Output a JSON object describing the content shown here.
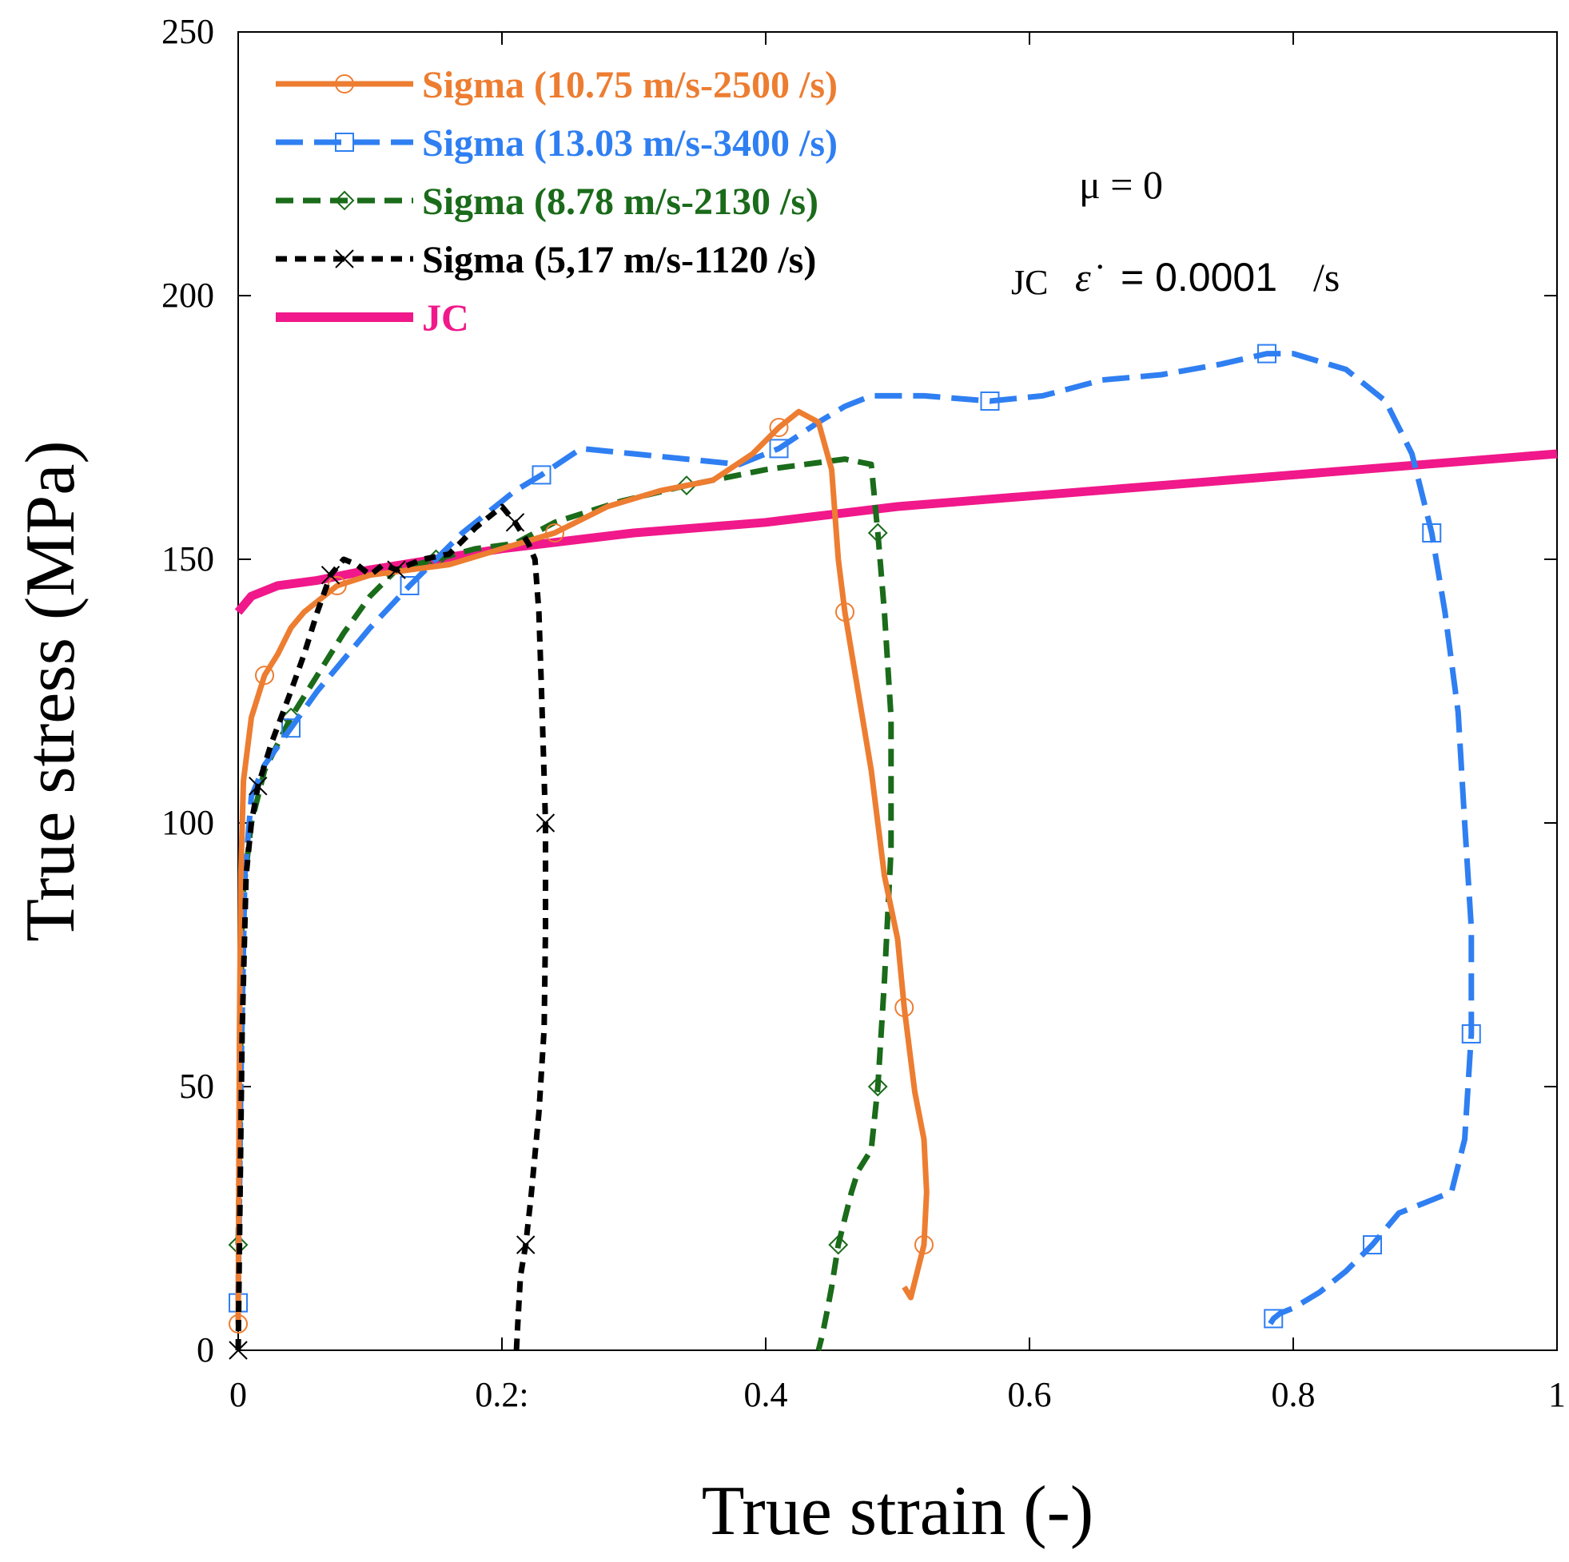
{
  "chart_data": {
    "type": "line",
    "xlabel": "True strain (-)",
    "ylabel": "True stress (MPa)",
    "xlim": [
      0,
      1
    ],
    "ylim": [
      0,
      250
    ],
    "x_ticks": [
      0,
      0.2,
      0.4,
      0.6,
      0.8,
      1
    ],
    "x_tick_labels": [
      "0",
      "0.2:",
      "0.4",
      "0.6",
      "0.8",
      "1"
    ],
    "y_ticks": [
      0,
      50,
      100,
      150,
      200,
      250
    ],
    "y_tick_labels": [
      "0",
      "50",
      "100",
      "150",
      "200",
      "250"
    ],
    "legend_position": "top-left",
    "annotations": {
      "mu": "μ = 0",
      "jc_prefix": "JC",
      "jc_symbol": "ε̇",
      "jc_rate": "= 0.0001",
      "jc_unit": "/s"
    },
    "series": [
      {
        "name": "Sigma  (10.75 m/s-2500 /s)",
        "color": "#ED7D31",
        "dash": "solid",
        "marker": "circle",
        "points": [
          [
            0.0,
            5
          ],
          [
            0.001,
            60
          ],
          [
            0.002,
            90
          ],
          [
            0.004,
            108
          ],
          [
            0.01,
            120
          ],
          [
            0.02,
            128
          ],
          [
            0.03,
            132
          ],
          [
            0.04,
            137
          ],
          [
            0.05,
            140
          ],
          [
            0.06,
            142
          ],
          [
            0.075,
            145
          ],
          [
            0.1,
            147
          ],
          [
            0.13,
            148
          ],
          [
            0.16,
            149
          ],
          [
            0.2,
            152
          ],
          [
            0.24,
            155
          ],
          [
            0.28,
            160
          ],
          [
            0.32,
            163
          ],
          [
            0.36,
            165
          ],
          [
            0.39,
            170
          ],
          [
            0.41,
            175
          ],
          [
            0.425,
            178
          ],
          [
            0.44,
            176
          ],
          [
            0.45,
            167
          ],
          [
            0.455,
            150
          ],
          [
            0.46,
            140
          ],
          [
            0.47,
            125
          ],
          [
            0.48,
            110
          ],
          [
            0.49,
            90
          ],
          [
            0.5,
            78
          ],
          [
            0.505,
            65
          ],
          [
            0.51,
            55
          ],
          [
            0.513,
            49
          ],
          [
            0.52,
            40
          ],
          [
            0.522,
            30
          ],
          [
            0.52,
            20
          ],
          [
            0.515,
            15
          ],
          [
            0.51,
            10
          ],
          [
            0.505,
            12
          ]
        ]
      },
      {
        "name": "Sigma (13.03 m/s-3400 /s)",
        "color": "#2F7FF2",
        "dash": "longdash",
        "marker": "square",
        "points": [
          [
            0.0,
            9
          ],
          [
            0.002,
            50
          ],
          [
            0.005,
            90
          ],
          [
            0.01,
            105
          ],
          [
            0.02,
            111
          ],
          [
            0.04,
            118
          ],
          [
            0.06,
            125
          ],
          [
            0.08,
            131
          ],
          [
            0.1,
            137
          ],
          [
            0.115,
            141
          ],
          [
            0.13,
            145
          ],
          [
            0.15,
            150
          ],
          [
            0.17,
            155
          ],
          [
            0.19,
            159
          ],
          [
            0.21,
            163
          ],
          [
            0.23,
            166
          ],
          [
            0.26,
            171
          ],
          [
            0.3,
            170
          ],
          [
            0.34,
            169
          ],
          [
            0.38,
            168
          ],
          [
            0.41,
            171
          ],
          [
            0.44,
            176
          ],
          [
            0.46,
            179
          ],
          [
            0.48,
            181
          ],
          [
            0.52,
            181
          ],
          [
            0.57,
            180
          ],
          [
            0.61,
            181
          ],
          [
            0.655,
            184
          ],
          [
            0.7,
            185
          ],
          [
            0.745,
            187
          ],
          [
            0.78,
            189
          ],
          [
            0.8,
            189
          ],
          [
            0.84,
            186
          ],
          [
            0.87,
            180
          ],
          [
            0.89,
            170
          ],
          [
            0.905,
            155
          ],
          [
            0.915,
            140
          ],
          [
            0.925,
            121
          ],
          [
            0.93,
            100
          ],
          [
            0.935,
            80
          ],
          [
            0.935,
            60
          ],
          [
            0.93,
            40
          ],
          [
            0.92,
            30
          ],
          [
            0.9,
            28
          ],
          [
            0.88,
            26
          ],
          [
            0.86,
            20
          ],
          [
            0.84,
            15
          ],
          [
            0.82,
            11
          ],
          [
            0.8,
            8
          ],
          [
            0.79,
            7
          ],
          [
            0.785,
            6
          ],
          [
            0.78,
            4
          ]
        ]
      },
      {
        "name": "Sigma (8.78 m/s-2130 /s)",
        "color": "#1A6B1A",
        "dash": "dash",
        "marker": "diamond",
        "points": [
          [
            0.0,
            20
          ],
          [
            0.002,
            60
          ],
          [
            0.003,
            85
          ],
          [
            0.01,
            100
          ],
          [
            0.02,
            110
          ],
          [
            0.04,
            120
          ],
          [
            0.06,
            128
          ],
          [
            0.08,
            136
          ],
          [
            0.1,
            143
          ],
          [
            0.12,
            148
          ],
          [
            0.15,
            150
          ],
          [
            0.18,
            152
          ],
          [
            0.21,
            153
          ],
          [
            0.24,
            157
          ],
          [
            0.29,
            161
          ],
          [
            0.34,
            164
          ],
          [
            0.4,
            167
          ],
          [
            0.43,
            168
          ],
          [
            0.46,
            169
          ],
          [
            0.48,
            168
          ],
          [
            0.485,
            155
          ],
          [
            0.49,
            140
          ],
          [
            0.495,
            120
          ],
          [
            0.495,
            95
          ],
          [
            0.49,
            70
          ],
          [
            0.485,
            50
          ],
          [
            0.48,
            38
          ],
          [
            0.47,
            34
          ],
          [
            0.465,
            30
          ],
          [
            0.46,
            25
          ],
          [
            0.455,
            20
          ],
          [
            0.45,
            12
          ],
          [
            0.447,
            8
          ],
          [
            0.443,
            3
          ],
          [
            0.44,
            0
          ]
        ]
      },
      {
        "name": "Sigma (5,17 m/s-1120 /s)",
        "color": "#000000",
        "dash": "shortdash",
        "marker": "cross",
        "points": [
          [
            0.0,
            0
          ],
          [
            0.001,
            20
          ],
          [
            0.003,
            60
          ],
          [
            0.006,
            90
          ],
          [
            0.01,
            100
          ],
          [
            0.015,
            107
          ],
          [
            0.025,
            115
          ],
          [
            0.04,
            125
          ],
          [
            0.05,
            132
          ],
          [
            0.06,
            140
          ],
          [
            0.07,
            147
          ],
          [
            0.08,
            150
          ],
          [
            0.09,
            149
          ],
          [
            0.1,
            147
          ],
          [
            0.11,
            149
          ],
          [
            0.12,
            148
          ],
          [
            0.14,
            150
          ],
          [
            0.16,
            151
          ],
          [
            0.18,
            156
          ],
          [
            0.2,
            160
          ],
          [
            0.21,
            157
          ],
          [
            0.22,
            153
          ],
          [
            0.225,
            150
          ],
          [
            0.228,
            140
          ],
          [
            0.23,
            125
          ],
          [
            0.233,
            100
          ],
          [
            0.233,
            80
          ],
          [
            0.232,
            61
          ],
          [
            0.228,
            45
          ],
          [
            0.222,
            29
          ],
          [
            0.218,
            20
          ],
          [
            0.214,
            14
          ],
          [
            0.212,
            5
          ],
          [
            0.211,
            0
          ]
        ]
      },
      {
        "name": "JC",
        "color": "#F0188A",
        "dash": "solid",
        "marker": "none",
        "points": [
          [
            0.0,
            140
          ],
          [
            0.01,
            143
          ],
          [
            0.03,
            145
          ],
          [
            0.06,
            146
          ],
          [
            0.1,
            148
          ],
          [
            0.2,
            152
          ],
          [
            0.3,
            155
          ],
          [
            0.4,
            157
          ],
          [
            0.5,
            160
          ],
          [
            0.6,
            162
          ],
          [
            0.7,
            164
          ],
          [
            0.8,
            166
          ],
          [
            0.9,
            168
          ],
          [
            1.0,
            170
          ]
        ]
      }
    ]
  }
}
